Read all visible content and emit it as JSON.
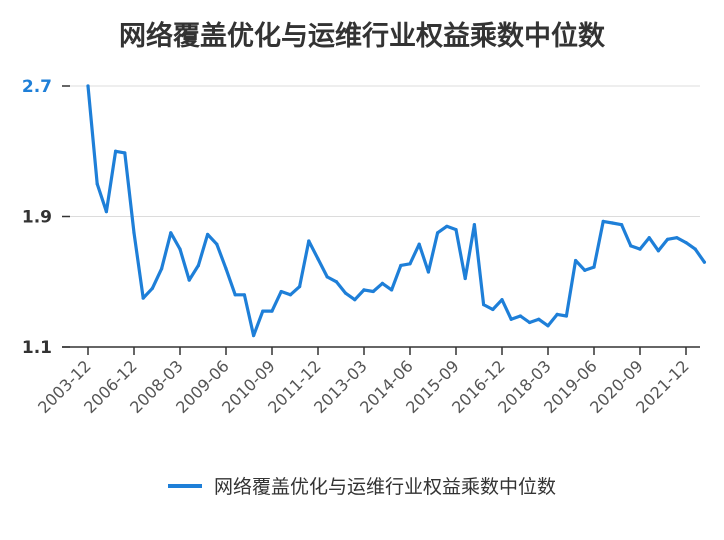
{
  "chart_data": {
    "type": "line",
    "title": "网络覆盖优化与运维行业权益乘数中位数",
    "xlabel": "",
    "ylabel": "",
    "ylim": [
      1.1,
      2.7
    ],
    "yticks": [
      "2.7",
      "1.9",
      "1.1"
    ],
    "xtick_labels": [
      "2003-12",
      "2006-12",
      "2008-03",
      "2009-06",
      "2010-09",
      "2011-12",
      "2013-03",
      "2014-06",
      "2015-09",
      "2016-12",
      "2018-03",
      "2019-06",
      "2020-09",
      "2021-12"
    ],
    "grid": true,
    "legend_position": "bottom",
    "color": "#1e7fd8",
    "series": [
      {
        "name": "网络覆盖优化与运维行业权益乘数中位数",
        "values": [
          2.7,
          2.1,
          1.93,
          2.3,
          2.29,
          1.8,
          1.4,
          1.46,
          1.58,
          1.8,
          1.7,
          1.51,
          1.6,
          1.79,
          1.73,
          1.58,
          1.42,
          1.42,
          1.17,
          1.32,
          1.32,
          1.44,
          1.42,
          1.47,
          1.75,
          1.64,
          1.53,
          1.5,
          1.43,
          1.39,
          1.45,
          1.44,
          1.49,
          1.45,
          1.6,
          1.61,
          1.73,
          1.56,
          1.8,
          1.84,
          1.82,
          1.52,
          1.85,
          1.36,
          1.33,
          1.39,
          1.27,
          1.29,
          1.25,
          1.27,
          1.23,
          1.3,
          1.29,
          1.63,
          1.57,
          1.59,
          1.87,
          1.86,
          1.85,
          1.72,
          1.7,
          1.77,
          1.69,
          1.76,
          1.77,
          1.74,
          1.7,
          1.62
        ]
      }
    ]
  }
}
